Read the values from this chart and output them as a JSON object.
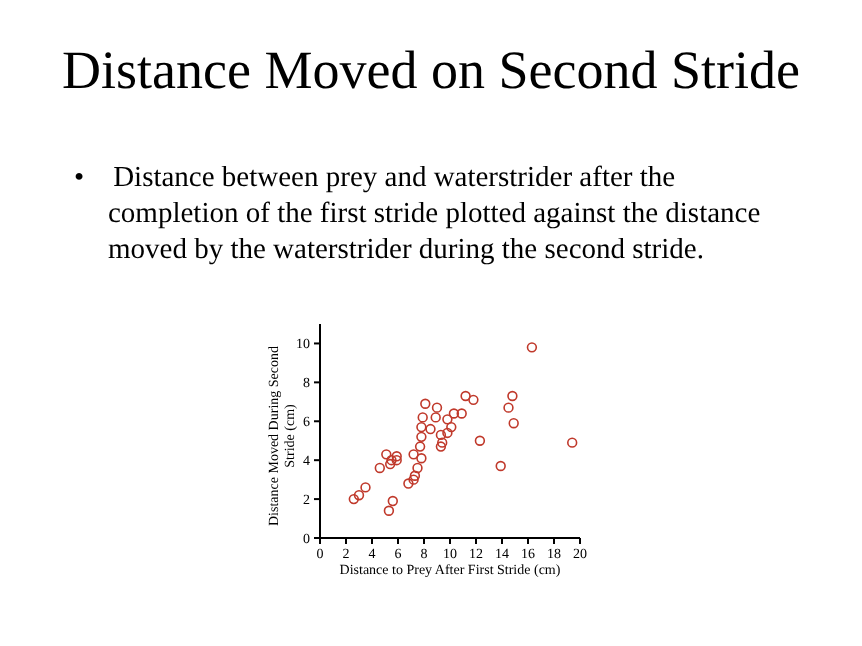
{
  "chart_data": {
    "type": "scatter",
    "title": "Distance Moved on Second Stride",
    "subtitle": "• Distance between prey and waterstrider after the completion of the first stride plotted against the distance moved by the waterstrider during the second stride.",
    "xlabel": "Distance to Prey After First Stride (cm)",
    "ylabel": "Distance Moved During Second Stride (cm)",
    "xlim": [
      0,
      20
    ],
    "xticks": [
      0,
      2,
      4,
      6,
      8,
      10,
      12,
      14,
      16,
      18,
      20
    ],
    "ylim": [
      0,
      11
    ],
    "yticks": [
      0,
      2,
      4,
      6,
      8,
      10
    ],
    "marker": "circle",
    "grid": false,
    "legend": false,
    "series": [
      {
        "color": "#c0392b",
        "x": [
          16.3,
          11.2,
          11.8,
          14.8,
          14.5,
          14.9,
          8.1,
          9.0,
          8.9,
          7.9,
          7.8,
          8.5,
          10.3,
          10.9,
          9.8,
          10.1,
          9.8,
          9.3,
          9.4,
          9.3,
          7.8,
          7.7,
          7.8,
          7.2,
          7.5,
          7.3,
          7.2,
          6.8,
          5.1,
          5.9,
          5.5,
          5.4,
          5.9,
          4.6,
          3.5,
          3.0,
          2.6,
          5.6,
          5.3,
          12.3,
          13.9,
          19.4
        ],
        "values": [
          9.8,
          7.3,
          7.1,
          7.3,
          6.7,
          5.9,
          6.9,
          6.7,
          6.2,
          6.2,
          5.7,
          5.6,
          6.4,
          6.4,
          6.1,
          5.7,
          5.4,
          5.3,
          4.9,
          4.7,
          5.2,
          4.7,
          4.1,
          4.3,
          3.6,
          3.2,
          3.0,
          2.8,
          4.3,
          4.2,
          4.0,
          3.8,
          4.0,
          3.6,
          2.6,
          2.2,
          2.0,
          1.9,
          1.4,
          5.0,
          3.7,
          4.9
        ]
      }
    ]
  }
}
